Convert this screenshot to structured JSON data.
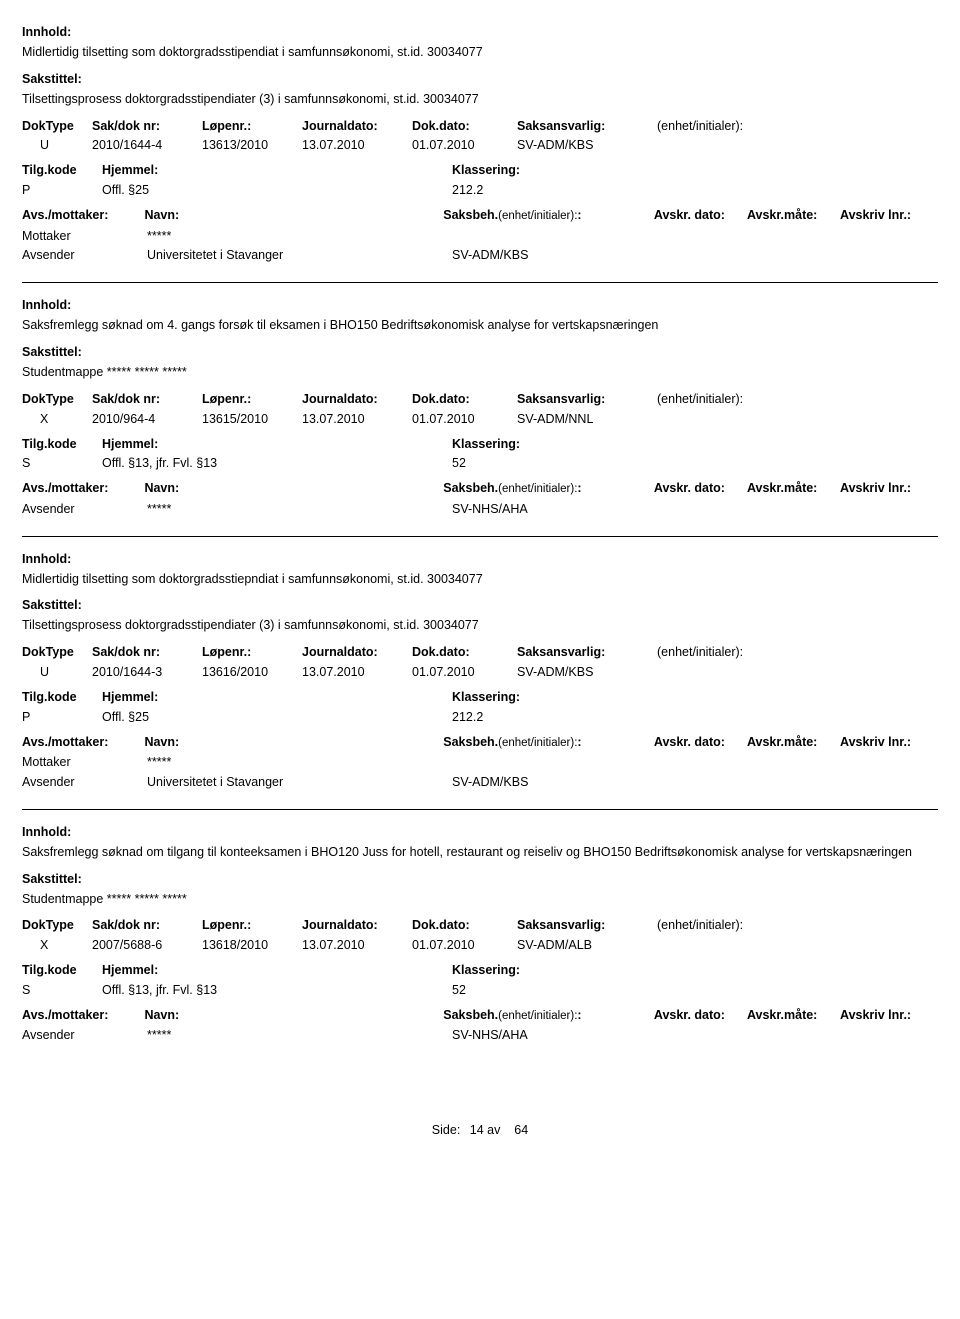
{
  "labels": {
    "innhold": "Innhold:",
    "sakstittel": "Sakstittel:",
    "doktype": "DokType",
    "sakdok": "Sak/dok nr:",
    "lopenr": "Løpenr.:",
    "journaldato": "Journaldato:",
    "dokdato": "Dok.dato:",
    "saksansvarlig": "Saksansvarlig:",
    "enhet": "(enhet/initialer):",
    "tilgkode": "Tilg.kode",
    "hjemmel": "Hjemmel:",
    "klassering": "Klassering:",
    "avsmottaker": "Avs./mottaker:",
    "navn": "Navn:",
    "saksbeh": "Saksbeh.",
    "saksbeh_enhet": "(enhet/initialer):",
    "avskrdato": "Avskr. dato:",
    "avskrmaate": "Avskr.måte:",
    "avskrivlnr": "Avskriv lnr.:",
    "side": "Side:",
    "av": "av"
  },
  "records": [
    {
      "innhold": "Midlertidig tilsetting som doktorgradsstipendiat i samfunnsøkonomi, st.id. 30034077",
      "sakstittel": "Tilsettingsprosess  doktorgradsstipendiater (3) i samfunnsøkonomi, st.id. 30034077",
      "doktype": "U",
      "sakdok": "2010/1644-4",
      "lopenr": "13613/2010",
      "journaldato": "13.07.2010",
      "dokdato": "01.07.2010",
      "saksansvarlig": "SV-ADM/KBS",
      "tilgkode": "P",
      "hjemmel": "Offl. §25",
      "klassering": "212.2",
      "parties": [
        {
          "role": "Mottaker",
          "name": "*****",
          "saksbeh": ""
        },
        {
          "role": "Avsender",
          "name": "Universitetet i Stavanger",
          "saksbeh": "SV-ADM/KBS"
        }
      ]
    },
    {
      "innhold": "Saksfremlegg søknad om 4. gangs forsøk til eksamen i BHO150 Bedriftsøkonomisk analyse for vertskapsnæringen",
      "sakstittel": "Studentmappe ***** ***** *****",
      "doktype": "X",
      "sakdok": "2010/964-4",
      "lopenr": "13615/2010",
      "journaldato": "13.07.2010",
      "dokdato": "01.07.2010",
      "saksansvarlig": "SV-ADM/NNL",
      "tilgkode": "S",
      "hjemmel": "Offl. §13, jfr. Fvl. §13",
      "klassering": "52",
      "parties": [
        {
          "role": "Avsender",
          "name": "*****",
          "saksbeh": "SV-NHS/AHA"
        }
      ]
    },
    {
      "innhold": "Midlertidig tilsetting som doktorgradsstiepndiat i samfunnsøkonomi, st.id. 30034077",
      "sakstittel": "Tilsettingsprosess  doktorgradsstipendiater (3) i samfunnsøkonomi, st.id. 30034077",
      "doktype": "U",
      "sakdok": "2010/1644-3",
      "lopenr": "13616/2010",
      "journaldato": "13.07.2010",
      "dokdato": "01.07.2010",
      "saksansvarlig": "SV-ADM/KBS",
      "tilgkode": "P",
      "hjemmel": "Offl. §25",
      "klassering": "212.2",
      "parties": [
        {
          "role": "Mottaker",
          "name": "*****",
          "saksbeh": ""
        },
        {
          "role": "Avsender",
          "name": "Universitetet i Stavanger",
          "saksbeh": "SV-ADM/KBS"
        }
      ]
    },
    {
      "innhold": "Saksfremlegg søknad om tilgang til konteeksamen i BHO120 Juss for hotell, restaurant og reiseliv og BHO150 Bedriftsøkonomisk analyse for vertskapsnæringen",
      "sakstittel": "Studentmappe ***** ***** *****",
      "doktype": "X",
      "sakdok": "2007/5688-6",
      "lopenr": "13618/2010",
      "journaldato": "13.07.2010",
      "dokdato": "01.07.2010",
      "saksansvarlig": "SV-ADM/ALB",
      "tilgkode": "S",
      "hjemmel": "Offl. §13, jfr. Fvl. §13",
      "klassering": "52",
      "parties": [
        {
          "role": "Avsender",
          "name": "*****",
          "saksbeh": "SV-NHS/AHA"
        }
      ]
    }
  ],
  "page": {
    "current": "14",
    "total": "64"
  }
}
